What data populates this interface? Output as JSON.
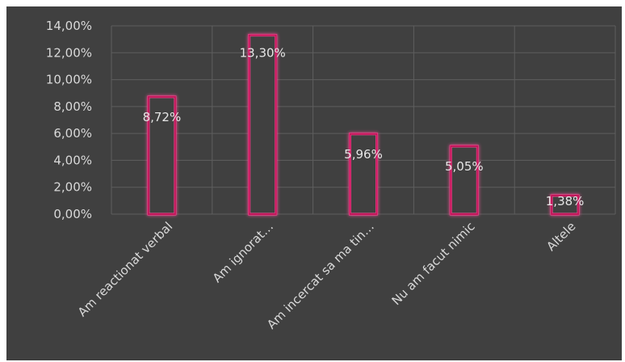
{
  "chart_data": {
    "type": "bar",
    "categories": [
      "Am reactionat verbal",
      "Am ignorat…",
      "Am incercat sa ma tin…",
      "Nu am facut nimic",
      "Altele"
    ],
    "values": [
      8.72,
      13.3,
      5.96,
      5.05,
      1.38
    ],
    "data_labels": [
      "8,72%",
      "13,30%",
      "5,96%",
      "5,05%",
      "1,38%"
    ],
    "y_ticks": [
      "0,00%",
      "2,00%",
      "4,00%",
      "6,00%",
      "8,00%",
      "10,00%",
      "12,00%",
      "14,00%"
    ],
    "ylim": [
      0,
      14
    ],
    "grid": true,
    "legend": "none",
    "title": "",
    "xlabel": "",
    "ylabel": "",
    "colors": {
      "background": "#404040",
      "bar_outline": "#c2185b",
      "bar_glow": "#ff4f9a",
      "bar_fill": "#404040",
      "text": "#d9d9d9",
      "grid": "#5e5e5e"
    }
  }
}
